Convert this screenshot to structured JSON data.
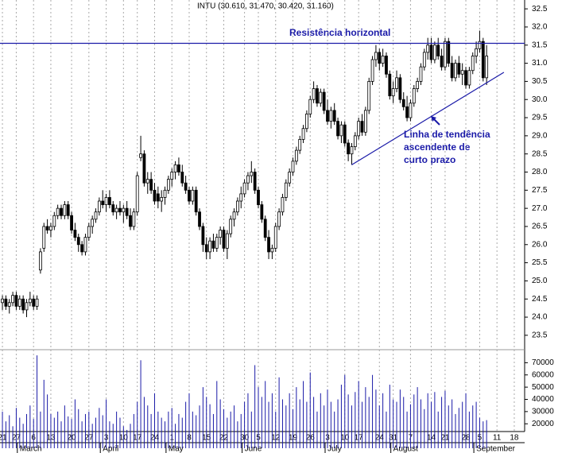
{
  "chart_data": {
    "type": "candlestick",
    "title": "INTU (30.610, 31.470, 30.420, 31.160)",
    "annotations": {
      "resistance_label": "Resistência horizontal",
      "trend_label": [
        "Linha de tendência",
        "ascendente de",
        "curto prazo"
      ]
    },
    "resistance": 31.55,
    "trendline": {
      "x": [
        101,
        145
      ],
      "y": [
        28.2,
        30.75
      ]
    },
    "xlim": [
      -0.7,
      151
    ],
    "ylim": [
      23.3,
      32.7
    ],
    "yticks": [
      {
        "value": 23.5,
        "label": "23.5"
      },
      {
        "value": 24,
        "label": "24.0"
      },
      {
        "value": 24.5,
        "label": "24.5"
      },
      {
        "value": 25,
        "label": "25.0"
      },
      {
        "value": 25.5,
        "label": "25.5"
      },
      {
        "value": 26,
        "label": "26.0"
      },
      {
        "value": 26.5,
        "label": "26.5"
      },
      {
        "value": 27,
        "label": "27.0"
      },
      {
        "value": 27.5,
        "label": "27.5"
      },
      {
        "value": 28,
        "label": "28.0"
      },
      {
        "value": 28.5,
        "label": "28.5"
      },
      {
        "value": 29,
        "label": "29.0"
      },
      {
        "value": 29.5,
        "label": "29.5"
      },
      {
        "value": 30,
        "label": "30.0"
      },
      {
        "value": 30.5,
        "label": "30.5"
      },
      {
        "value": 31,
        "label": "31.0"
      },
      {
        "value": 31.5,
        "label": "31.5"
      },
      {
        "value": 32,
        "label": "32.0"
      },
      {
        "value": 32.5,
        "label": "32.5"
      }
    ],
    "volume_lim": [
      0,
      80000
    ],
    "volume_ticks": [
      20000,
      30000,
      40000,
      50000,
      60000,
      70000
    ],
    "xticks": [
      {
        "value": 0,
        "label": "21"
      },
      {
        "value": 4,
        "label": "27"
      },
      {
        "value": 9,
        "label": "6"
      },
      {
        "value": 14,
        "label": "13"
      },
      {
        "value": 20,
        "label": "20"
      },
      {
        "value": 25,
        "label": "27"
      },
      {
        "value": 30,
        "label": "3"
      },
      {
        "value": 35,
        "label": "10"
      },
      {
        "value": 39,
        "label": "17"
      },
      {
        "value": 44,
        "label": "24"
      },
      {
        "value": 49,
        "label": "1"
      },
      {
        "value": 54,
        "label": "8"
      },
      {
        "value": 59,
        "label": "15"
      },
      {
        "value": 64,
        "label": "22"
      },
      {
        "value": 70,
        "label": "30"
      },
      {
        "value": 74,
        "label": "5"
      },
      {
        "value": 79,
        "label": "12"
      },
      {
        "value": 84,
        "label": "19"
      },
      {
        "value": 89,
        "label": "26"
      },
      {
        "value": 94,
        "label": "3"
      },
      {
        "value": 99,
        "label": "10"
      },
      {
        "value": 103,
        "label": "17"
      },
      {
        "value": 109,
        "label": "24"
      },
      {
        "value": 113,
        "label": "31"
      },
      {
        "value": 118,
        "label": "7"
      },
      {
        "value": 124,
        "label": "14"
      },
      {
        "value": 128,
        "label": "21"
      },
      {
        "value": 134,
        "label": "28"
      },
      {
        "value": 138,
        "label": "5"
      },
      {
        "value": 143,
        "label": "11"
      },
      {
        "value": 148,
        "label": "18"
      }
    ],
    "months": [
      {
        "value": 5,
        "label": "March"
      },
      {
        "value": 29,
        "label": "April"
      },
      {
        "value": 48,
        "label": "May"
      },
      {
        "value": 70,
        "label": "June"
      },
      {
        "value": 94,
        "label": "July"
      },
      {
        "value": 113,
        "label": "August"
      },
      {
        "value": 137,
        "label": "September"
      }
    ],
    "ohlc": [
      [
        24.4,
        24.6,
        24.2,
        24.5
      ],
      [
        24.5,
        24.6,
        24.2,
        24.3
      ],
      [
        24.3,
        24.5,
        24.1,
        24.4
      ],
      [
        24.4,
        24.7,
        24.3,
        24.6
      ],
      [
        24.6,
        24.7,
        24.2,
        24.3
      ],
      [
        24.3,
        24.6,
        24.2,
        24.5
      ],
      [
        24.5,
        24.6,
        24.1,
        24.2
      ],
      [
        24.2,
        24.5,
        24.0,
        24.4
      ],
      [
        24.4,
        24.7,
        24.3,
        24.5
      ],
      [
        24.5,
        24.6,
        24.2,
        24.3
      ],
      [
        24.3,
        24.6,
        24.2,
        24.5
      ],
      [
        25.3,
        25.9,
        25.2,
        25.8
      ],
      [
        25.9,
        26.6,
        25.8,
        26.5
      ],
      [
        26.5,
        26.7,
        26.3,
        26.4
      ],
      [
        26.4,
        26.6,
        26.2,
        26.5
      ],
      [
        26.5,
        26.9,
        26.4,
        26.8
      ],
      [
        26.8,
        27.1,
        26.7,
        27.0
      ],
      [
        27.0,
        27.1,
        26.7,
        26.8
      ],
      [
        26.8,
        27.2,
        26.7,
        27.1
      ],
      [
        27.1,
        27.2,
        26.7,
        26.8
      ],
      [
        26.8,
        26.9,
        26.3,
        26.4
      ],
      [
        26.4,
        26.6,
        26.1,
        26.2
      ],
      [
        26.2,
        26.3,
        25.8,
        26.0
      ],
      [
        26.0,
        26.1,
        25.7,
        25.8
      ],
      [
        25.8,
        26.3,
        25.7,
        26.2
      ],
      [
        26.2,
        26.6,
        26.1,
        26.5
      ],
      [
        26.5,
        26.8,
        26.3,
        26.7
      ],
      [
        26.7,
        27.0,
        26.6,
        26.9
      ],
      [
        26.9,
        27.3,
        26.8,
        27.2
      ],
      [
        27.2,
        27.5,
        27.0,
        27.1
      ],
      [
        27.1,
        27.4,
        26.9,
        27.3
      ],
      [
        27.3,
        27.5,
        27.0,
        27.1
      ],
      [
        27.1,
        27.2,
        26.8,
        26.9
      ],
      [
        26.9,
        27.1,
        26.7,
        27.0
      ],
      [
        27.0,
        27.2,
        26.8,
        26.9
      ],
      [
        26.9,
        27.1,
        26.6,
        27.0
      ],
      [
        27.0,
        27.2,
        26.7,
        26.8
      ],
      [
        26.8,
        27.0,
        26.4,
        26.5
      ],
      [
        26.5,
        27.0,
        26.4,
        26.9
      ],
      [
        26.9,
        28.0,
        26.8,
        27.9
      ],
      [
        28.4,
        29.0,
        28.3,
        28.5
      ],
      [
        28.5,
        28.6,
        27.6,
        27.7
      ],
      [
        27.7,
        28.0,
        27.4,
        27.8
      ],
      [
        27.8,
        28.0,
        27.4,
        27.5
      ],
      [
        27.5,
        27.7,
        27.1,
        27.2
      ],
      [
        27.4,
        27.6,
        27.0,
        27.2
      ],
      [
        27.2,
        27.5,
        26.9,
        27.3
      ],
      [
        27.3,
        27.6,
        27.1,
        27.5
      ],
      [
        27.5,
        27.9,
        27.4,
        27.8
      ],
      [
        27.8,
        28.1,
        27.6,
        28.0
      ],
      [
        28.0,
        28.3,
        27.8,
        28.2
      ],
      [
        28.2,
        28.4,
        27.9,
        28.0
      ],
      [
        28.0,
        28.2,
        27.6,
        27.7
      ],
      [
        27.7,
        27.9,
        27.4,
        27.5
      ],
      [
        27.5,
        27.6,
        27.1,
        27.2
      ],
      [
        27.2,
        27.6,
        27.1,
        27.5
      ],
      [
        27.5,
        27.6,
        26.8,
        26.9
      ],
      [
        26.9,
        27.0,
        26.4,
        26.5
      ],
      [
        26.5,
        26.6,
        25.8,
        26.0
      ],
      [
        26.0,
        26.2,
        25.6,
        25.8
      ],
      [
        25.8,
        26.2,
        25.6,
        26.1
      ],
      [
        26.1,
        26.3,
        25.8,
        25.9
      ],
      [
        25.9,
        26.3,
        25.8,
        26.2
      ],
      [
        26.2,
        26.5,
        26.0,
        26.4
      ],
      [
        26.4,
        26.5,
        25.8,
        25.9
      ],
      [
        25.9,
        26.4,
        25.6,
        26.3
      ],
      [
        26.3,
        26.8,
        26.2,
        26.7
      ],
      [
        26.7,
        27.0,
        26.5,
        26.9
      ],
      [
        26.9,
        27.3,
        26.8,
        27.2
      ],
      [
        27.2,
        27.6,
        27.0,
        27.4
      ],
      [
        27.4,
        27.8,
        27.3,
        27.7
      ],
      [
        27.7,
        28.0,
        27.5,
        27.9
      ],
      [
        27.9,
        28.3,
        27.7,
        28.0
      ],
      [
        28.0,
        28.1,
        27.4,
        27.5
      ],
      [
        27.5,
        27.6,
        27.0,
        27.1
      ],
      [
        27.1,
        27.2,
        26.6,
        26.7
      ],
      [
        26.7,
        26.8,
        26.1,
        26.2
      ],
      [
        26.2,
        26.4,
        25.6,
        25.8
      ],
      [
        25.8,
        26.0,
        25.6,
        25.9
      ],
      [
        25.9,
        26.6,
        25.8,
        26.5
      ],
      [
        26.5,
        27.0,
        26.4,
        26.9
      ],
      [
        26.9,
        27.4,
        26.8,
        27.3
      ],
      [
        27.3,
        27.8,
        27.2,
        27.7
      ],
      [
        27.7,
        28.1,
        27.6,
        28.0
      ],
      [
        28.0,
        28.4,
        27.9,
        28.3
      ],
      [
        28.3,
        28.7,
        28.2,
        28.6
      ],
      [
        28.6,
        29.0,
        28.5,
        28.9
      ],
      [
        28.9,
        29.3,
        28.8,
        29.2
      ],
      [
        29.2,
        29.7,
        29.1,
        29.6
      ],
      [
        29.6,
        30.1,
        29.5,
        30.0
      ],
      [
        30.0,
        30.5,
        29.9,
        30.3
      ],
      [
        30.3,
        30.4,
        29.8,
        29.9
      ],
      [
        29.9,
        30.3,
        29.8,
        30.2
      ],
      [
        30.2,
        30.3,
        29.6,
        29.7
      ],
      [
        29.7,
        30.0,
        29.3,
        29.4
      ],
      [
        29.4,
        29.8,
        29.2,
        29.7
      ],
      [
        29.7,
        29.9,
        29.3,
        29.4
      ],
      [
        29.4,
        29.5,
        28.9,
        29.0
      ],
      [
        29.0,
        29.4,
        28.8,
        29.3
      ],
      [
        29.3,
        29.4,
        28.7,
        28.8
      ],
      [
        28.8,
        28.9,
        28.3,
        28.5
      ],
      [
        28.5,
        28.8,
        28.2,
        28.7
      ],
      [
        28.7,
        29.1,
        28.6,
        29.0
      ],
      [
        29.0,
        29.5,
        28.9,
        29.4
      ],
      [
        29.4,
        29.6,
        29.0,
        29.1
      ],
      [
        29.1,
        29.8,
        29.0,
        29.7
      ],
      [
        29.7,
        30.6,
        29.6,
        30.5
      ],
      [
        30.5,
        31.2,
        30.4,
        31.1
      ],
      [
        31.1,
        31.5,
        30.9,
        31.3
      ],
      [
        31.3,
        31.4,
        30.8,
        31.0
      ],
      [
        31.0,
        31.4,
        30.9,
        31.2
      ],
      [
        31.2,
        31.3,
        30.6,
        30.7
      ],
      [
        30.7,
        30.8,
        30.0,
        30.1
      ],
      [
        30.1,
        30.5,
        29.9,
        30.3
      ],
      [
        30.3,
        30.8,
        30.2,
        30.6
      ],
      [
        30.6,
        30.7,
        29.9,
        30.0
      ],
      [
        30.0,
        30.2,
        29.7,
        29.8
      ],
      [
        29.8,
        30.1,
        29.4,
        29.5
      ],
      [
        29.5,
        30.0,
        29.4,
        29.9
      ],
      [
        29.9,
        30.4,
        29.8,
        30.3
      ],
      [
        30.3,
        30.6,
        30.2,
        30.5
      ],
      [
        30.5,
        31.0,
        30.4,
        30.9
      ],
      [
        30.9,
        31.4,
        30.8,
        31.3
      ],
      [
        31.3,
        31.7,
        31.1,
        31.5
      ],
      [
        31.5,
        31.7,
        31.0,
        31.1
      ],
      [
        31.1,
        31.6,
        31.0,
        31.5
      ],
      [
        31.5,
        31.7,
        31.1,
        31.2
      ],
      [
        31.2,
        31.4,
        30.8,
        30.9
      ],
      [
        30.9,
        31.7,
        30.8,
        31.6
      ],
      [
        31.6,
        31.7,
        30.9,
        31.0
      ],
      [
        31.0,
        31.2,
        30.5,
        30.6
      ],
      [
        30.6,
        31.1,
        30.5,
        31.0
      ],
      [
        31.0,
        31.2,
        30.6,
        30.7
      ],
      [
        30.7,
        31.0,
        30.4,
        30.8
      ],
      [
        30.8,
        30.9,
        30.3,
        30.4
      ],
      [
        30.4,
        30.9,
        30.3,
        30.8
      ],
      [
        30.8,
        31.3,
        30.7,
        31.2
      ],
      [
        31.2,
        31.6,
        31.0,
        31.4
      ],
      [
        31.4,
        31.9,
        31.3,
        31.6
      ],
      [
        31.6,
        31.7,
        30.5,
        30.6
      ],
      [
        30.6,
        31.5,
        30.4,
        31.2
      ]
    ],
    "volume": [
      30000,
      22000,
      27000,
      18000,
      33000,
      25000,
      20000,
      28000,
      35000,
      24000,
      76000,
      30000,
      56000,
      44000,
      28000,
      25000,
      30000,
      22000,
      35000,
      26000,
      24000,
      40000,
      32000,
      22000,
      28000,
      30000,
      20000,
      25000,
      33000,
      27000,
      40000,
      22000,
      20000,
      30000,
      25000,
      18000,
      15000,
      20000,
      28000,
      38000,
      72000,
      42000,
      35000,
      28000,
      45000,
      30000,
      25000,
      22000,
      30000,
      33000,
      20000,
      28000,
      25000,
      38000,
      45000,
      30000,
      27000,
      35000,
      50000,
      42000,
      36000,
      28000,
      55000,
      40000,
      32000,
      25000,
      30000,
      35000,
      22000,
      28000,
      38000,
      45000,
      30000,
      68000,
      50000,
      42000,
      55000,
      38000,
      45000,
      30000,
      58000,
      40000,
      35000,
      45000,
      32000,
      50000,
      40000,
      55000,
      38000,
      62000,
      42000,
      30000,
      45000,
      35000,
      48000,
      38000,
      30000,
      40000,
      52000,
      60000,
      44000,
      35000,
      46000,
      55000,
      38000,
      50000,
      42000,
      60000,
      48000,
      35000,
      45000,
      30000,
      52000,
      40000,
      38000,
      48000,
      42000,
      30000,
      36000,
      44000,
      50000,
      40000,
      32000,
      45000,
      38000,
      46000,
      30000,
      42000,
      47000,
      35000,
      40000,
      28000,
      33000,
      38000,
      45000,
      30000,
      35000,
      38000,
      25000,
      22000,
      23000
    ]
  }
}
